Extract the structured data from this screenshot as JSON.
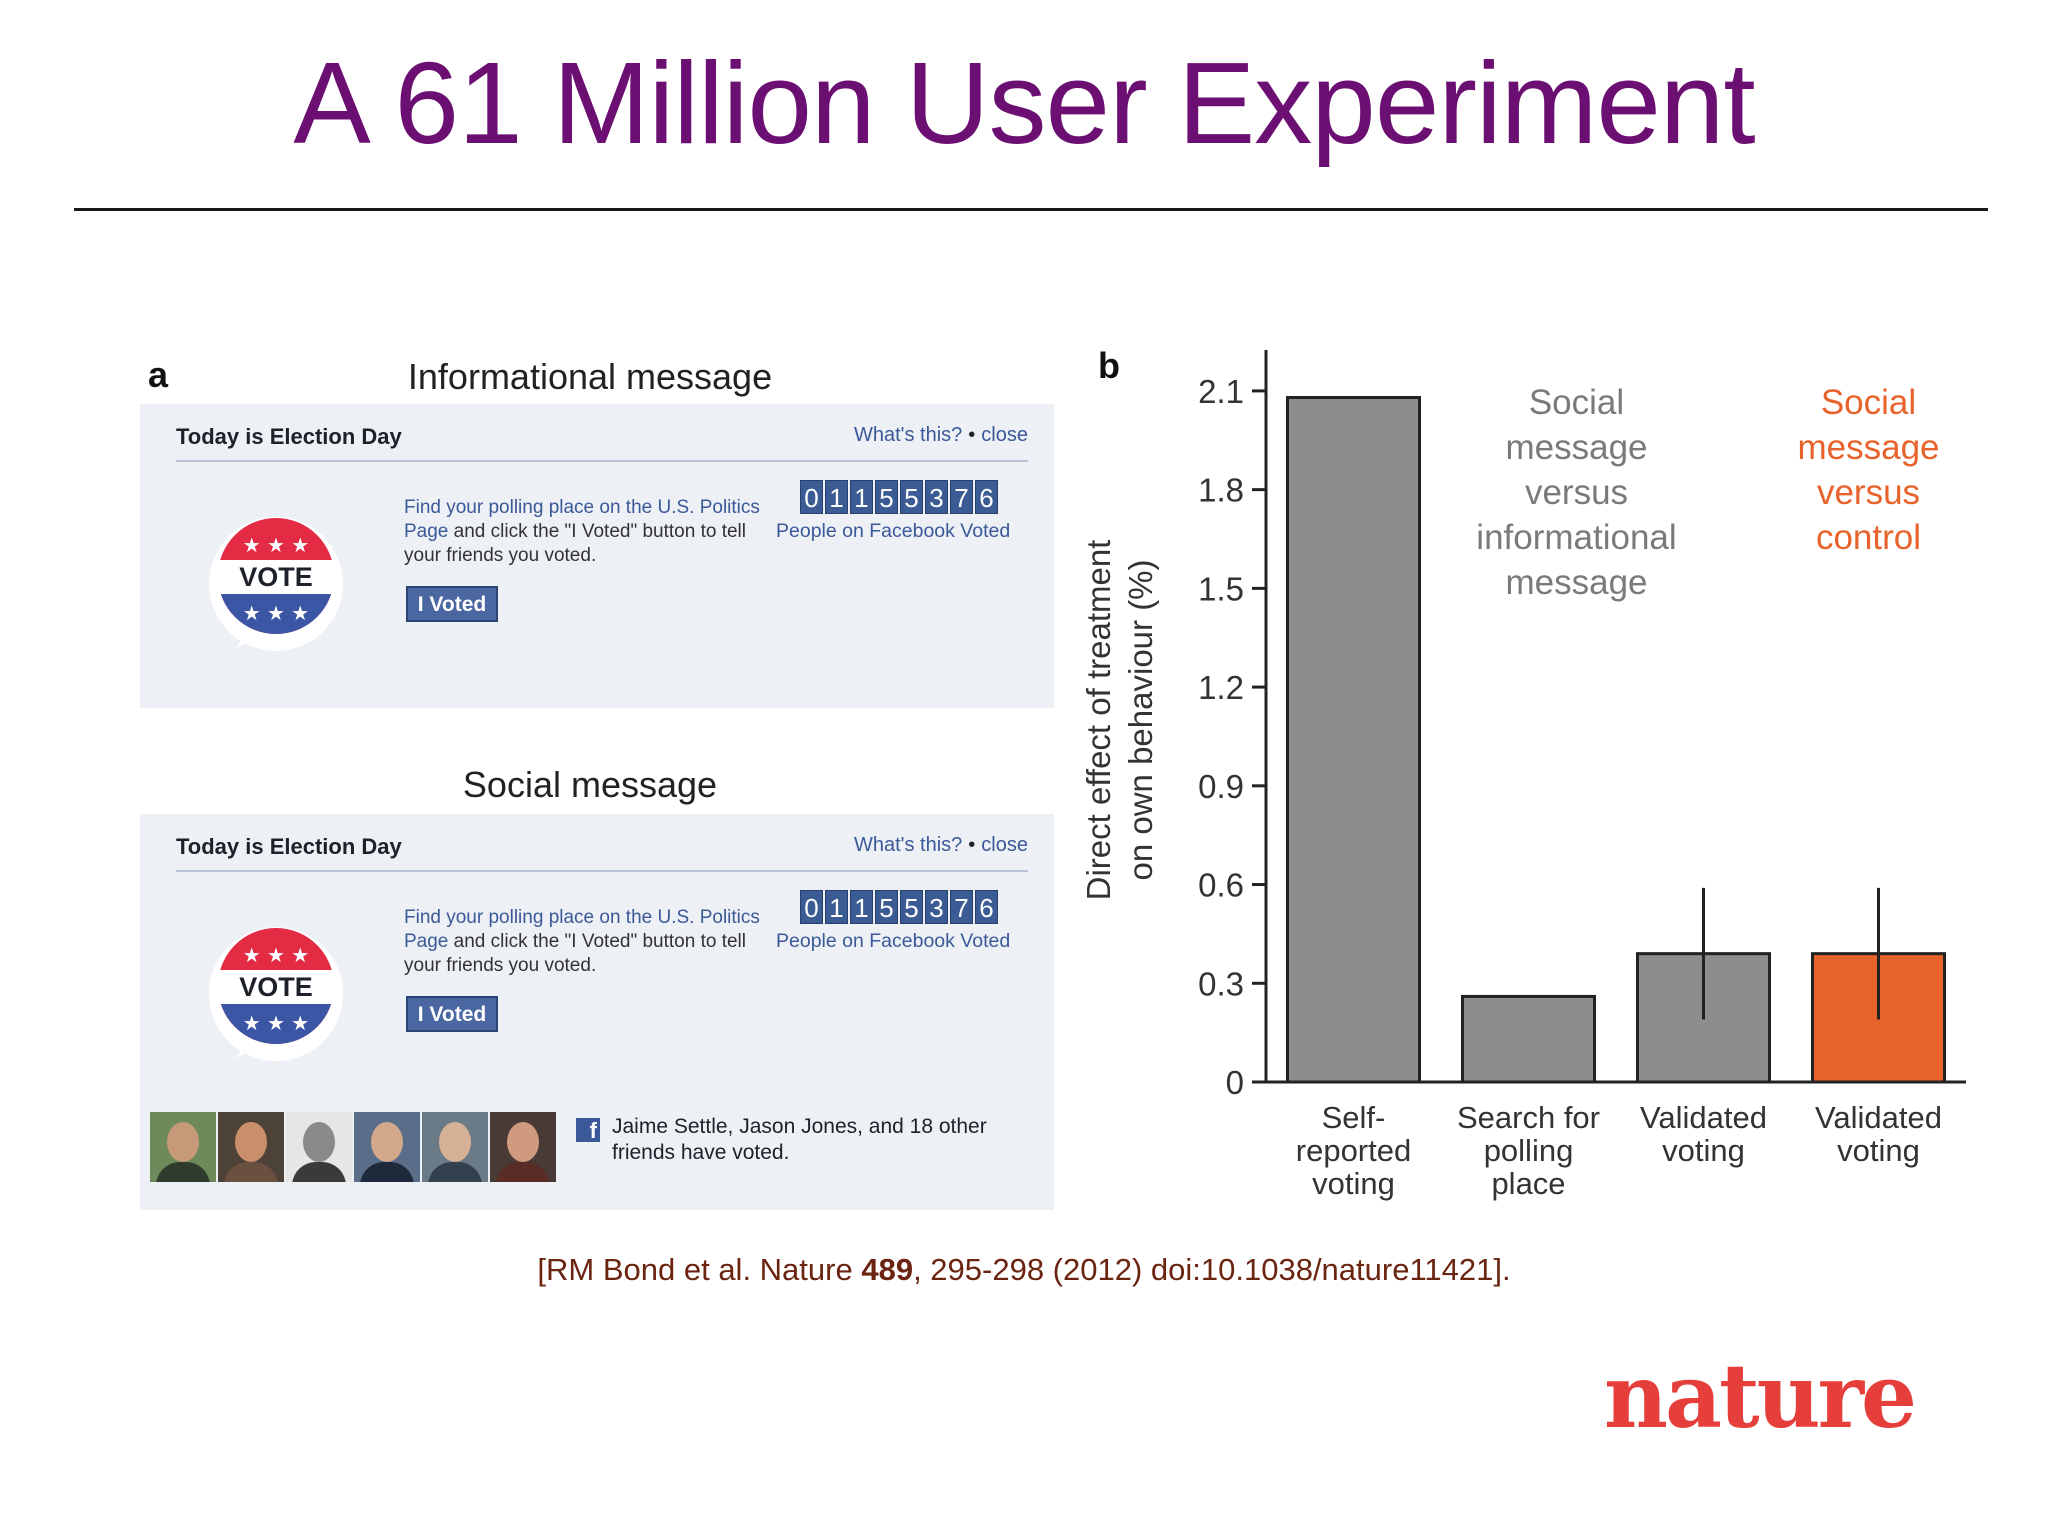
{
  "slide": {
    "title": "A 61 Million User Experiment",
    "citation": {
      "prefix": "[RM Bond et al. Nature ",
      "volume": "489",
      "suffix": ", 295-298 (2012) doi:10.1038/nature11421]."
    },
    "logo_text": "nature"
  },
  "panel_a": {
    "letter": "a",
    "informational_caption": "Informational message",
    "social_caption": "Social message",
    "banner": {
      "title": "Today is Election Day",
      "whats_this": "What's this?",
      "close": "close",
      "find_link": "Find your polling place on the U.S. Politics Page",
      "find_rest": " and click the \"I Voted\" button to tell your friends you voted.",
      "button_label": "I Voted",
      "badge_text": "VOTE",
      "counter_digits": [
        "0",
        "1",
        "1",
        "5",
        "5",
        "3",
        "7",
        "6"
      ],
      "counter_label": "People on Facebook Voted"
    },
    "friends_text": "Jaime Settle, Jason Jones, and 18 other friends have voted.",
    "fb_icon": "f"
  },
  "chart_data": {
    "type": "bar",
    "panel_letter": "b",
    "categories": [
      "Self-\nreported\nvoting",
      "Search for\npolling\nplace",
      "Validated\nvoting",
      "Validated\nvoting"
    ],
    "values": [
      2.08,
      0.26,
      0.39,
      0.39
    ],
    "error_bars": [
      null,
      null,
      [
        0.19,
        0.59
      ],
      [
        0.19,
        0.59
      ]
    ],
    "bar_colors": [
      "#8d8d8f",
      "#8d8d8f",
      "#8d8d8f",
      "#e8632b"
    ],
    "ylabel": "Direct effect of treatment\non own behaviour (%)",
    "yticks": [
      0,
      0.3,
      0.6,
      0.9,
      1.2,
      1.5,
      1.8,
      2.1
    ],
    "ytick_labels": [
      "0",
      "0.3",
      "0.6",
      "0.9",
      "1.2",
      "1.5",
      "1.8",
      "2.1"
    ],
    "ylim": [
      0,
      2.2
    ],
    "annotations": [
      {
        "text": "Social\nmessage\nversus\ninformational\nmessage",
        "color": "#7a7a7a"
      },
      {
        "text": "Social\nmessage\nversus\ncontrol",
        "color": "#e8632b"
      }
    ]
  }
}
